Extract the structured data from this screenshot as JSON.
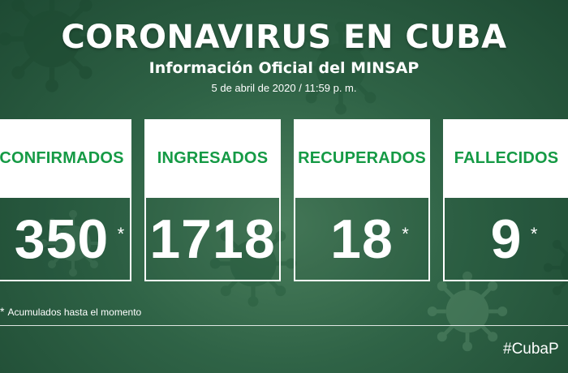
{
  "header": {
    "title": "CORONAVIRUS EN CUBA",
    "subtitle": "Información Oficial del MINSAP",
    "date": "5 de abril de 2020 / 11:59 p. m."
  },
  "cards": [
    {
      "label": "CONFIRMADOS",
      "value": "350",
      "star": "*"
    },
    {
      "label": "INGRESADOS",
      "value": "1718",
      "star": ""
    },
    {
      "label": "RECUPERADOS",
      "value": "18",
      "star": "*"
    },
    {
      "label": "FALLECIDOS",
      "value": "9",
      "star": "*"
    }
  ],
  "footnote": {
    "marker": "*",
    "text": "Acumulados hasta el momento"
  },
  "hashtag": "#CubaP",
  "colors": {
    "background": "#2f6346",
    "label_green": "#159a45",
    "card_white": "#ffffff"
  },
  "icons": [
    "virus-icon"
  ]
}
